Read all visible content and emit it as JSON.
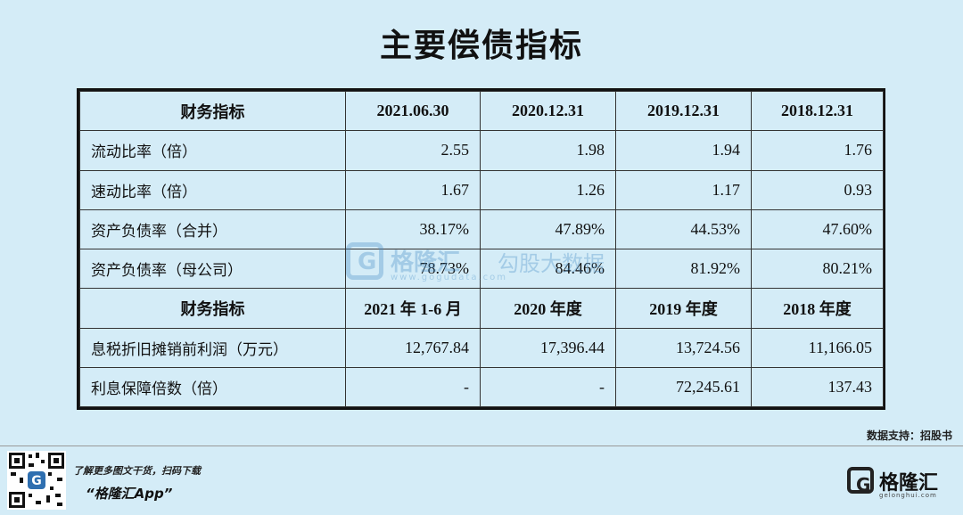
{
  "title": "主要偿债指标",
  "table": {
    "header1": [
      "财务指标",
      "2021.06.30",
      "2020.12.31",
      "2019.12.31",
      "2018.12.31"
    ],
    "rows1": [
      {
        "label": "流动比率（倍）",
        "values": [
          "2.55",
          "1.98",
          "1.94",
          "1.76"
        ]
      },
      {
        "label": "速动比率（倍）",
        "values": [
          "1.67",
          "1.26",
          "1.17",
          "0.93"
        ]
      },
      {
        "label": "资产负债率（合并）",
        "values": [
          "38.17%",
          "47.89%",
          "44.53%",
          "47.60%"
        ]
      },
      {
        "label": "资产负债率（母公司）",
        "values": [
          "78.73%",
          "84.46%",
          "81.92%",
          "80.21%"
        ]
      }
    ],
    "header2": [
      "财务指标",
      "2021 年 1-6 月",
      "2020 年度",
      "2019 年度",
      "2018 年度"
    ],
    "rows2": [
      {
        "label": "息税折旧摊销前利润（万元）",
        "values": [
          "12,767.84",
          "17,396.44",
          "13,724.56",
          "11,166.05"
        ]
      },
      {
        "label": "利息保障倍数（倍）",
        "values": [
          "-",
          "-",
          "72,245.61",
          "137.43"
        ]
      }
    ]
  },
  "watermark": {
    "brand": "格隆汇",
    "text": "勾股大数据",
    "url": "www.gogudata.com",
    "logo_letter": "G"
  },
  "source": "数据支持：招股书",
  "footer": {
    "promo_line1": "了解更多图文干货，扫码下载",
    "promo_line2": "“格隆汇App”",
    "brand_name": "格隆汇",
    "brand_url": "gelonghui.com",
    "brand_letter": "G"
  }
}
